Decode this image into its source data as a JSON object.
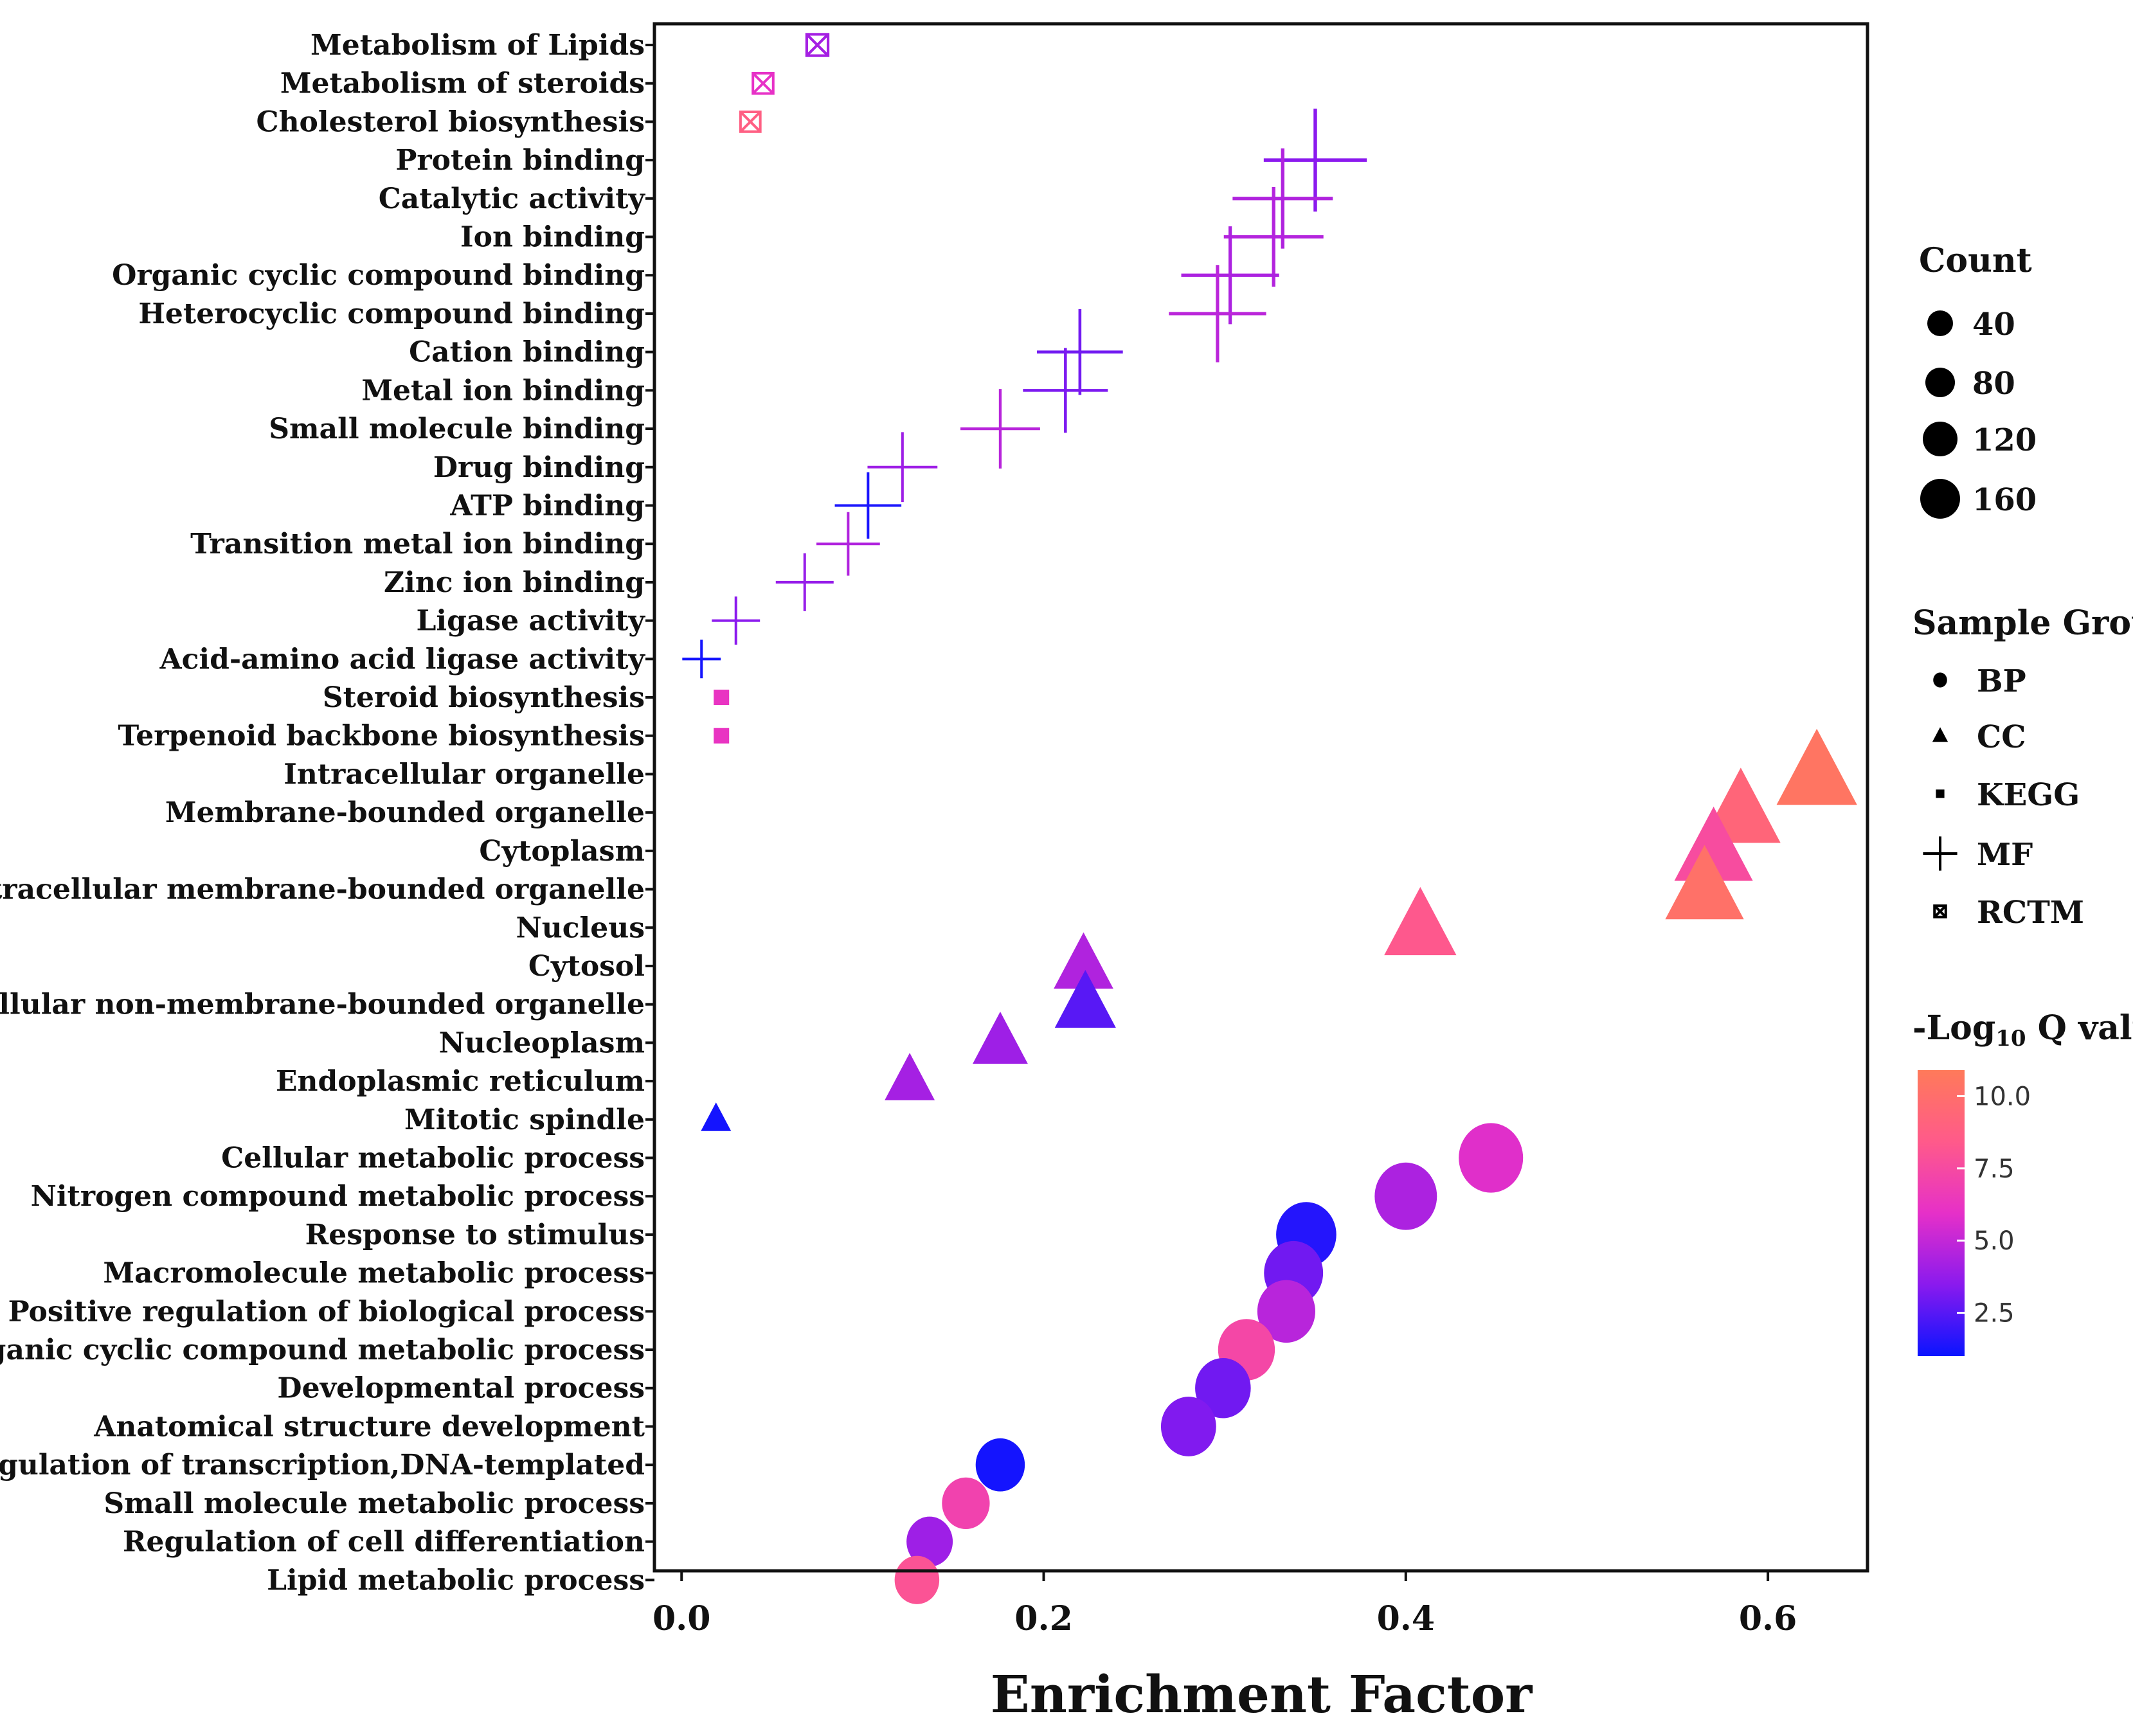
{
  "chart_data": {
    "type": "scatter",
    "xlabel": "Enrichment Factor",
    "xlim": [
      -0.015,
      0.655
    ],
    "x_ticks": [
      0.0,
      0.2,
      0.4,
      0.6
    ],
    "x_tick_labels": [
      "0.0",
      "0.2",
      "0.4",
      "0.6"
    ],
    "grid": false,
    "points": [
      {
        "term": "Metabolism of Lipids",
        "x": 0.075,
        "group": "RCTM",
        "count": 12,
        "q": 4.2
      },
      {
        "term": "Metabolism of steroids",
        "x": 0.045,
        "group": "RCTM",
        "count": 8,
        "q": 6.0
      },
      {
        "term": "Cholesterol biosynthesis",
        "x": 0.038,
        "group": "RCTM",
        "count": 6,
        "q": 8.8
      },
      {
        "term": "Protein binding",
        "x": 0.35,
        "group": "MF",
        "count": 150,
        "q": 3.5
      },
      {
        "term": "Catalytic activity",
        "x": 0.332,
        "group": "MF",
        "count": 140,
        "q": 4.5
      },
      {
        "term": "Ion binding",
        "x": 0.327,
        "group": "MF",
        "count": 138,
        "q": 4.6
      },
      {
        "term": "Organic cyclic compound binding",
        "x": 0.303,
        "group": "MF",
        "count": 132,
        "q": 4.4
      },
      {
        "term": "Heterocyclic compound binding",
        "x": 0.296,
        "group": "MF",
        "count": 130,
        "q": 4.8
      },
      {
        "term": "Cation binding",
        "x": 0.22,
        "group": "MF",
        "count": 95,
        "q": 3.0
      },
      {
        "term": "Metal ion binding",
        "x": 0.212,
        "group": "MF",
        "count": 92,
        "q": 3.2
      },
      {
        "term": "Small molecule binding",
        "x": 0.176,
        "group": "MF",
        "count": 78,
        "q": 4.7
      },
      {
        "term": "Drug binding",
        "x": 0.122,
        "group": "MF",
        "count": 55,
        "q": 4.0
      },
      {
        "term": "ATP binding",
        "x": 0.103,
        "group": "MF",
        "count": 48,
        "q": 1.3
      },
      {
        "term": "Transition metal ion binding",
        "x": 0.092,
        "group": "MF",
        "count": 42,
        "q": 4.5
      },
      {
        "term": "Zinc ion binding",
        "x": 0.068,
        "group": "MF",
        "count": 32,
        "q": 3.8
      },
      {
        "term": "Ligase activity",
        "x": 0.03,
        "group": "MF",
        "count": 18,
        "q": 3.5
      },
      {
        "term": "Acid-amino acid ligase activity",
        "x": 0.011,
        "group": "MF",
        "count": 8,
        "q": 1.2
      },
      {
        "term": "Steroid biosynthesis",
        "x": 0.022,
        "group": "KEGG",
        "count": 10,
        "q": 6.2
      },
      {
        "term": "Terpenoid backbone biosynthesis",
        "x": 0.022,
        "group": "KEGG",
        "count": 10,
        "q": 6.2
      },
      {
        "term": "Intracellular organelle",
        "x": 0.627,
        "group": "CC",
        "count": 170,
        "q": 10.5
      },
      {
        "term": "Membrane-bounded organelle",
        "x": 0.585,
        "group": "CC",
        "count": 165,
        "q": 9.3
      },
      {
        "term": "Cytoplasm",
        "x": 0.57,
        "group": "CC",
        "count": 160,
        "q": 7.6
      },
      {
        "term": "Intracellular membrane-bounded organelle",
        "x": 0.565,
        "group": "CC",
        "count": 160,
        "q": 10.2
      },
      {
        "term": "Nucleus",
        "x": 0.408,
        "group": "CC",
        "count": 130,
        "q": 8.3
      },
      {
        "term": "Cytosol",
        "x": 0.222,
        "group": "CC",
        "count": 80,
        "q": 4.5
      },
      {
        "term": "Intracellular non-membrane-bounded organelle",
        "x": 0.223,
        "group": "CC",
        "count": 85,
        "q": 2.5
      },
      {
        "term": "Nucleoplasm",
        "x": 0.176,
        "group": "CC",
        "count": 65,
        "q": 4.0
      },
      {
        "term": "Endoplasmic reticulum",
        "x": 0.126,
        "group": "CC",
        "count": 50,
        "q": 4.2
      },
      {
        "term": "Mitotic spindle",
        "x": 0.019,
        "group": "CC",
        "count": 10,
        "q": 1.2
      },
      {
        "term": "Cellular metabolic process",
        "x": 0.447,
        "group": "BP",
        "count": 130,
        "q": 5.8
      },
      {
        "term": "Nitrogen compound metabolic process",
        "x": 0.4,
        "group": "BP",
        "count": 120,
        "q": 4.4
      },
      {
        "term": "Response to stimulus",
        "x": 0.345,
        "group": "BP",
        "count": 110,
        "q": 1.5
      },
      {
        "term": "Macromolecule metabolic process",
        "x": 0.338,
        "group": "BP",
        "count": 105,
        "q": 3.0
      },
      {
        "term": "Positive regulation of biological process",
        "x": 0.334,
        "group": "BP",
        "count": 100,
        "q": 4.7
      },
      {
        "term": "Organic cyclic compound metabolic process",
        "x": 0.312,
        "group": "BP",
        "count": 95,
        "q": 7.3
      },
      {
        "term": "Developmental process",
        "x": 0.299,
        "group": "BP",
        "count": 90,
        "q": 3.0
      },
      {
        "term": "Anatomical structure development",
        "x": 0.28,
        "group": "BP",
        "count": 88,
        "q": 3.3
      },
      {
        "term": "Regulation of transcription,DNA-templated",
        "x": 0.176,
        "group": "BP",
        "count": 65,
        "q": 1.2
      },
      {
        "term": "Small molecule metabolic process",
        "x": 0.157,
        "group": "BP",
        "count": 60,
        "q": 7.0
      },
      {
        "term": "Regulation of cell differentiation",
        "x": 0.137,
        "group": "BP",
        "count": 55,
        "q": 4.0
      },
      {
        "term": "Lipid metabolic process",
        "x": 0.13,
        "group": "BP",
        "count": 50,
        "q": 8.0
      }
    ],
    "legends": {
      "count": {
        "title": "Count",
        "values": [
          40,
          80,
          120,
          160
        ],
        "labels": [
          "40",
          "80",
          "120",
          "160"
        ]
      },
      "group": {
        "title": "Sample Group",
        "items": [
          {
            "label": "BP",
            "shape": "circle"
          },
          {
            "label": "CC",
            "shape": "triangle"
          },
          {
            "label": "KEGG",
            "shape": "square"
          },
          {
            "label": "MF",
            "shape": "plus"
          },
          {
            "label": "RCTM",
            "shape": "boxed-x"
          }
        ]
      },
      "color": {
        "title_prefix": "-Log",
        "title_sub": "10",
        "title_suffix": " Q value",
        "min": 1.0,
        "max": 10.9,
        "ticks": [
          2.5,
          5.0,
          7.5,
          10.0
        ],
        "tick_labels": [
          "2.5",
          "5.0",
          "7.5",
          "10.0"
        ],
        "colors": [
          "#0a14ff",
          "#8a1aee",
          "#e630c8",
          "#ff5a8a",
          "#ff7a5a"
        ]
      }
    }
  }
}
